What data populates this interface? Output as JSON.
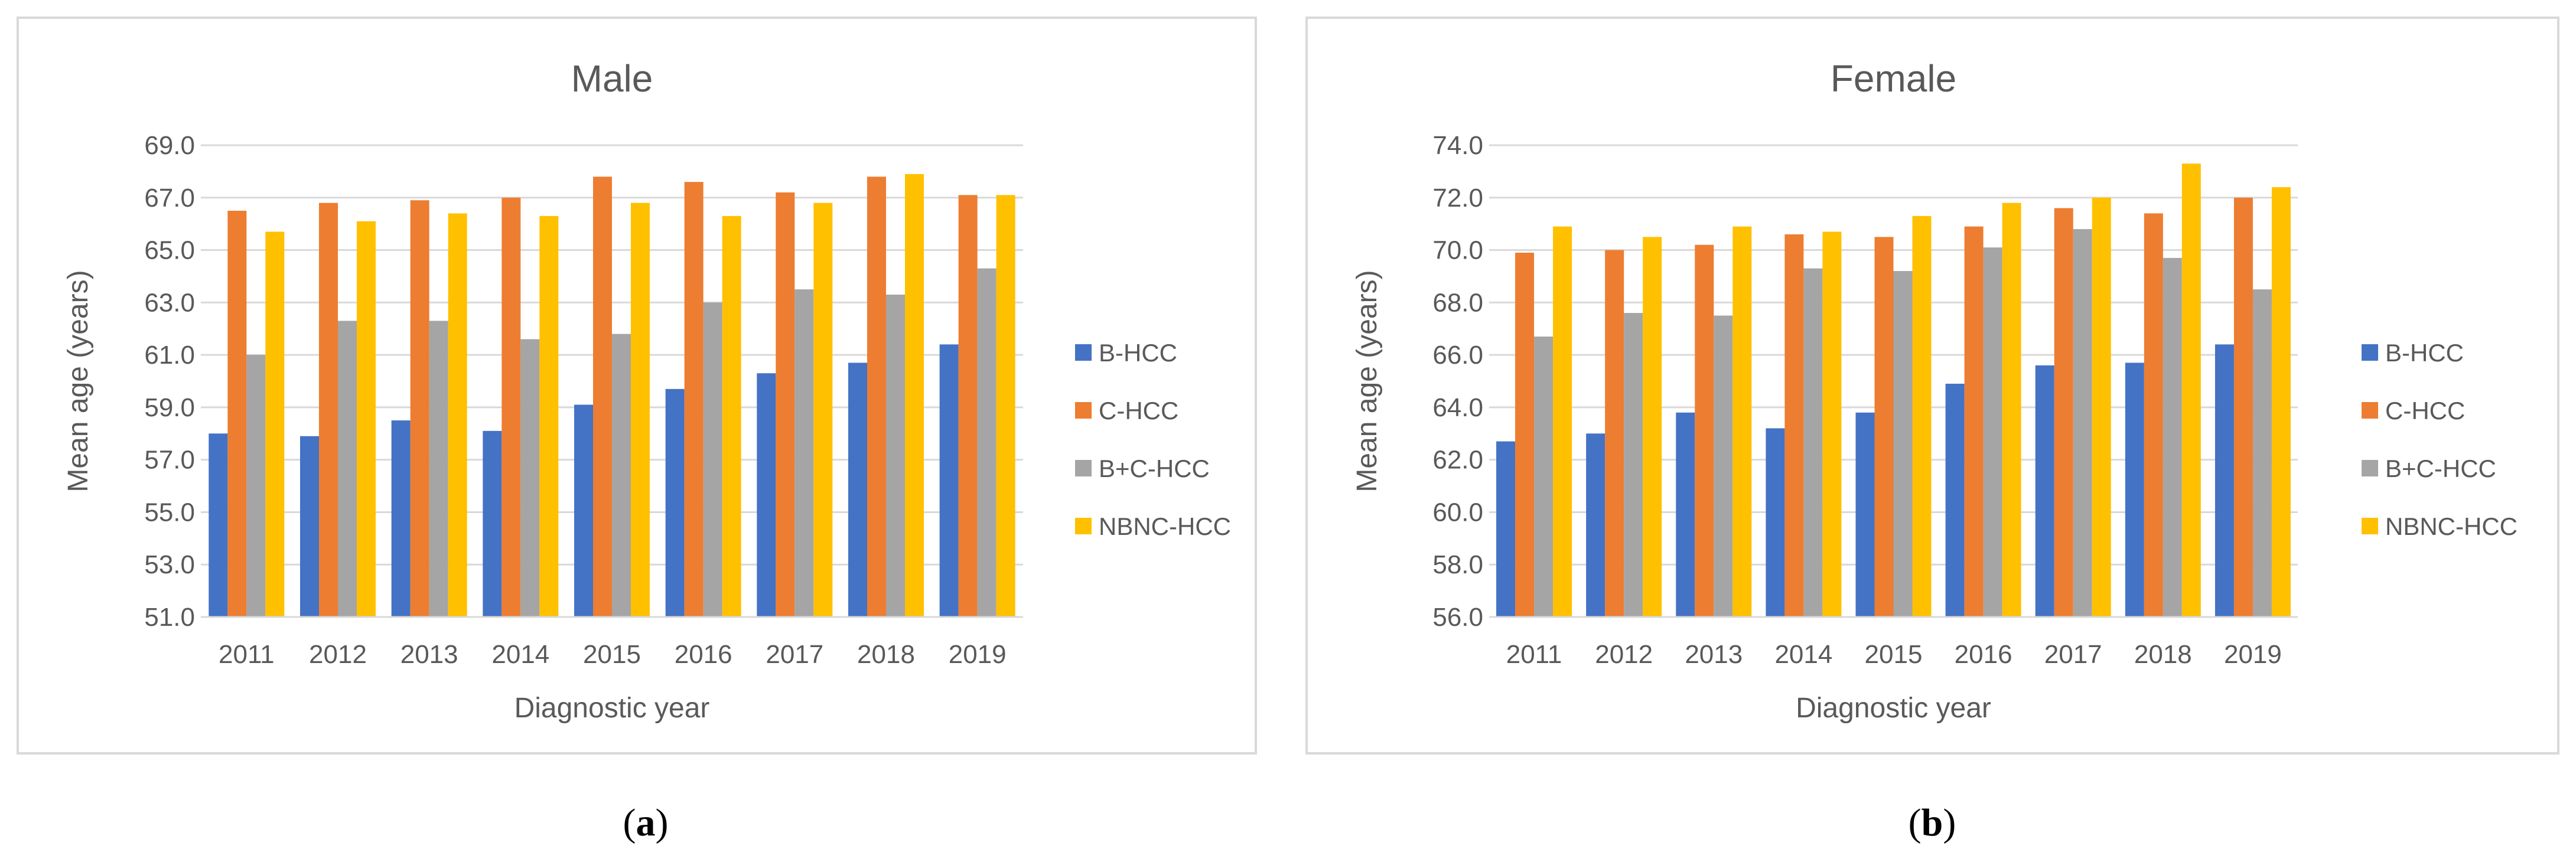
{
  "chart_data": [
    {
      "type": "bar",
      "title": "Male",
      "xlabel": "Diagnostic year",
      "ylabel": "Mean age (years)",
      "ylim": [
        51.0,
        69.0
      ],
      "yticks": [
        "51.0",
        "53.0",
        "55.0",
        "57.0",
        "59.0",
        "61.0",
        "63.0",
        "65.0",
        "67.0",
        "69.0"
      ],
      "categories": [
        "2011",
        "2012",
        "2013",
        "2014",
        "2015",
        "2016",
        "2017",
        "2018",
        "2019"
      ],
      "series": [
        {
          "name": "B-HCC",
          "color": "#4472C4",
          "values": [
            58.0,
            57.9,
            58.5,
            58.1,
            59.1,
            59.7,
            60.3,
            60.7,
            61.4
          ]
        },
        {
          "name": "C-HCC",
          "color": "#ED7D31",
          "values": [
            66.5,
            66.8,
            66.9,
            67.0,
            67.8,
            67.6,
            67.2,
            67.8,
            67.1
          ]
        },
        {
          "name": "B+C-HCC",
          "color": "#A5A5A5",
          "values": [
            61.0,
            62.3,
            62.3,
            61.6,
            61.8,
            63.0,
            63.5,
            63.3,
            64.3
          ]
        },
        {
          "name": "NBNC-HCC",
          "color": "#FFC000",
          "values": [
            65.7,
            66.1,
            66.4,
            66.3,
            66.8,
            66.3,
            66.8,
            67.9,
            67.1
          ]
        }
      ],
      "grid": true,
      "legend_position": "right",
      "caption": "a"
    },
    {
      "type": "bar",
      "title": "Female",
      "xlabel": "Diagnostic year",
      "ylabel": "Mean age (years)",
      "ylim": [
        56.0,
        74.0
      ],
      "yticks": [
        "56.0",
        "58.0",
        "60.0",
        "62.0",
        "64.0",
        "66.0",
        "68.0",
        "70.0",
        "72.0",
        "74.0"
      ],
      "categories": [
        "2011",
        "2012",
        "2013",
        "2014",
        "2015",
        "2016",
        "2017",
        "2018",
        "2019"
      ],
      "series": [
        {
          "name": "B-HCC",
          "color": "#4472C4",
          "values": [
            62.7,
            63.0,
            63.8,
            63.2,
            63.8,
            64.9,
            65.6,
            65.7,
            66.4
          ]
        },
        {
          "name": "C-HCC",
          "color": "#ED7D31",
          "values": [
            69.9,
            70.0,
            70.2,
            70.6,
            70.5,
            70.9,
            71.6,
            71.4,
            72.0
          ]
        },
        {
          "name": "B+C-HCC",
          "color": "#A5A5A5",
          "values": [
            66.7,
            67.6,
            67.5,
            69.3,
            69.2,
            70.1,
            70.8,
            69.7,
            68.5
          ]
        },
        {
          "name": "NBNC-HCC",
          "color": "#FFC000",
          "values": [
            70.9,
            70.5,
            70.9,
            70.7,
            71.3,
            71.8,
            72.0,
            73.3,
            72.4
          ]
        }
      ],
      "grid": true,
      "legend_position": "right",
      "caption": "b"
    }
  ]
}
